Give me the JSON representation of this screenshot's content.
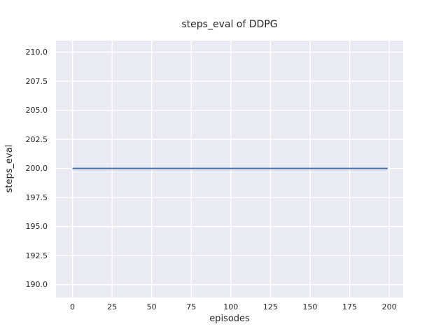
{
  "chart_data": {
    "type": "line",
    "title": "steps_eval of DDPG",
    "xlabel": "episodes",
    "ylabel": "steps_eval",
    "x_tick_values": [
      0,
      25,
      50,
      75,
      100,
      125,
      150,
      175,
      200
    ],
    "x_tick_labels": [
      "0",
      "25",
      "50",
      "75",
      "100",
      "125",
      "150",
      "175",
      "200"
    ],
    "y_tick_values": [
      190.0,
      192.5,
      195.0,
      197.5,
      200.0,
      202.5,
      205.0,
      207.5,
      210.0
    ],
    "y_tick_labels": [
      "190.0",
      "192.5",
      "195.0",
      "197.5",
      "200.0",
      "202.5",
      "205.0",
      "207.5",
      "210.0"
    ],
    "xlim": [
      -10.4,
      208.8
    ],
    "ylim": [
      188.9,
      211.0
    ],
    "grid": true,
    "legend_position": "none",
    "series": [
      {
        "name": "steps_eval of DDPG",
        "x": [
          0,
          199
        ],
        "y": [
          200.0,
          200.0
        ],
        "color": "#4c72b0"
      }
    ],
    "colors": {
      "figure_bg": "#ffffff",
      "plot_bg": "#eaeaf2",
      "grid": "#ffffff",
      "text": "#262626",
      "line": "#4c72b0"
    }
  }
}
